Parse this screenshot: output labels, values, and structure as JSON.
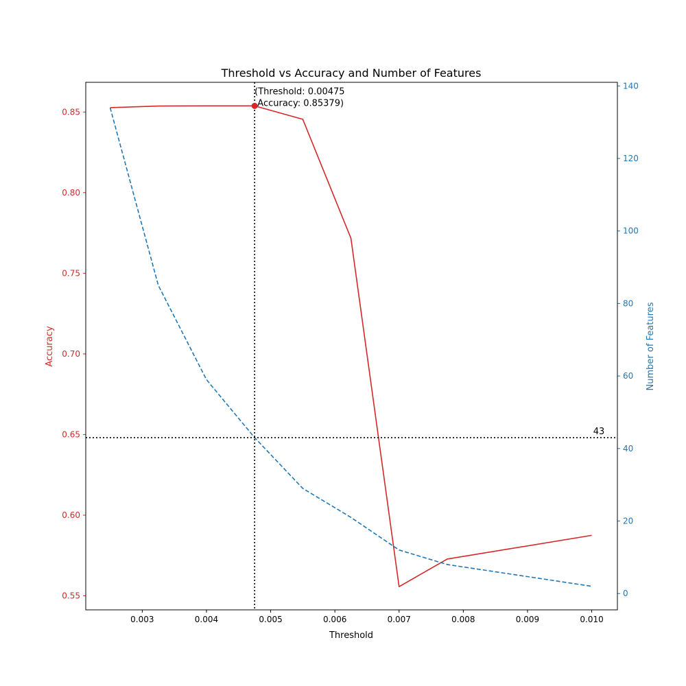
{
  "chart_data": {
    "type": "line",
    "title": "Threshold vs Accuracy and Number of Features",
    "xlabel": "Threshold",
    "ylabel_left": "Accuracy",
    "ylabel_right": "Number of Features",
    "xlim": [
      0.00212,
      0.0104
    ],
    "ylim_left": [
      0.5413,
      0.8684
    ],
    "ylim_right": [
      -4.5,
      141
    ],
    "x_ticks": [
      0.003,
      0.004,
      0.005,
      0.006,
      0.007,
      0.008,
      0.009,
      0.01
    ],
    "x_tick_labels": [
      "0.003",
      "0.004",
      "0.005",
      "0.006",
      "0.007",
      "0.008",
      "0.009",
      "0.010"
    ],
    "y_left_ticks": [
      0.55,
      0.6,
      0.65,
      0.7,
      0.75,
      0.8,
      0.85
    ],
    "y_left_tick_labels": [
      "0.55",
      "0.60",
      "0.65",
      "0.70",
      "0.75",
      "0.80",
      "0.85"
    ],
    "y_right_ticks": [
      0,
      20,
      40,
      60,
      80,
      100,
      120,
      140
    ],
    "y_right_tick_labels": [
      "0",
      "20",
      "40",
      "60",
      "80",
      "100",
      "120",
      "140"
    ],
    "x": [
      0.0025,
      0.00325,
      0.004,
      0.00475,
      0.0055,
      0.00625,
      0.007,
      0.00775,
      0.01
    ],
    "series": [
      {
        "name": "Accuracy",
        "axis": "left",
        "style": "solid",
        "color": "#d62728",
        "values": [
          0.8527,
          0.8537,
          0.8538,
          0.85379,
          0.8455,
          0.7717,
          0.5557,
          0.5728,
          0.5875
        ]
      },
      {
        "name": "Number of Features",
        "axis": "right",
        "style": "dashed",
        "color": "#1f77b4",
        "values": [
          134,
          85,
          59,
          43,
          29,
          21,
          12,
          8,
          2
        ]
      }
    ],
    "highlight": {
      "threshold": 0.00475,
      "accuracy": 0.85379,
      "features": 43,
      "annotation_line1": "(Threshold: 0.00475",
      "annotation_line2": " Accuracy: 0.85379)",
      "features_label": "43"
    },
    "grid": false,
    "colors": {
      "left_axis": "#d62728",
      "right_axis": "#1f77b4",
      "guide": "#000000"
    }
  }
}
